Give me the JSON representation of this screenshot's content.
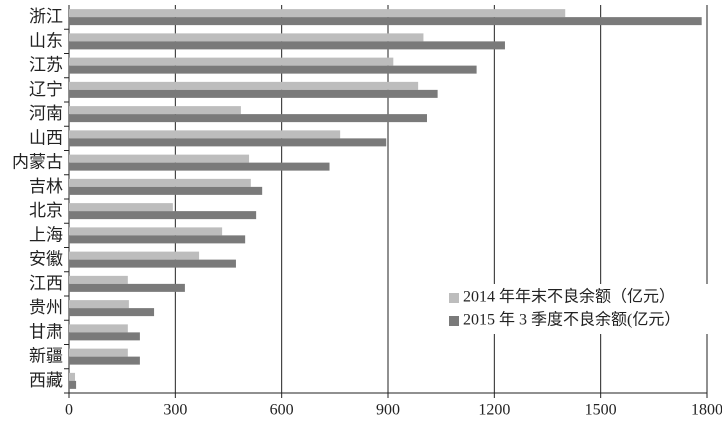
{
  "chart_data": {
    "type": "hbar",
    "categories": [
      "浙江",
      "山东",
      "江苏",
      "辽宁",
      "河南",
      "山西",
      "内蒙古",
      "吉林",
      "北京",
      "上海",
      "安徽",
      "江西",
      "贵州",
      "甘肃",
      "新疆",
      "西藏"
    ],
    "series": [
      {
        "name": "2014 年年末不良余额（亿元）",
        "color": "#bdbdbd",
        "values": [
          1400,
          1000,
          915,
          985,
          485,
          765,
          508,
          513,
          293,
          432,
          367,
          166,
          169,
          166,
          166,
          17
        ]
      },
      {
        "name": "2015 年 3 季度不良余额(亿元）",
        "color": "#7a7a7a",
        "values": [
          1785,
          1230,
          1150,
          1040,
          1010,
          895,
          735,
          545,
          528,
          497,
          471,
          327,
          240,
          200,
          200,
          20
        ]
      }
    ],
    "xlim": [
      0,
      1800
    ],
    "xticks": [
      0,
      300,
      600,
      900,
      1200,
      1500,
      1800
    ],
    "grid": true,
    "legend": "lower right"
  }
}
